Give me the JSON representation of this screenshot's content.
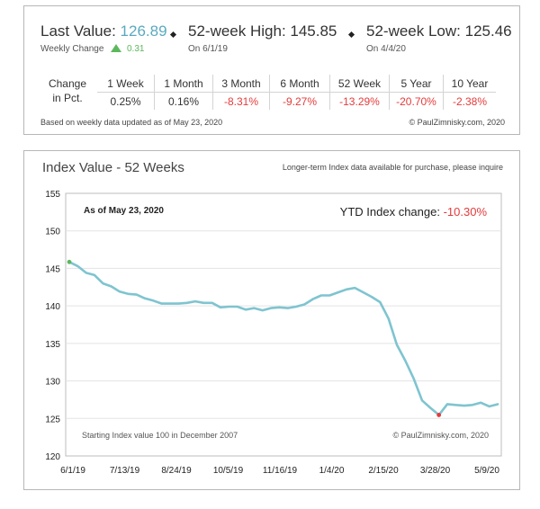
{
  "summary": {
    "last_value_label": "Last Value:",
    "last_value": "126.89",
    "weekly_change_label": "Weekly Change",
    "weekly_change": "0.31",
    "high_label": "52-week High: 145.85",
    "high_date": "On 6/1/19",
    "low_label": "52-week Low: 125.46",
    "low_date": "On 4/4/20"
  },
  "change_table": {
    "row_label_line1": "Change",
    "row_label_line2": "in Pct.",
    "headers": [
      "1 Week",
      "1 Month",
      "3 Month",
      "6 Month",
      "52 Week",
      "5 Year",
      "10 Year"
    ],
    "values": [
      "0.25%",
      "0.16%",
      "-8.31%",
      "-9.27%",
      "-13.29%",
      "-20.70%",
      "-2.38%"
    ]
  },
  "footnote": "Based on weekly data updated as of May 23, 2020",
  "copyright": "© PaulZimnisky.com, 2020",
  "colors": {
    "accent": "#5aa9bf",
    "positive": "#5cb85c",
    "negative": "#e53b3b",
    "line": "#7fc4d0"
  },
  "chart_data": {
    "type": "line",
    "title": "Index Value - 52 Weeks",
    "subtitle": "Longer-term Index data available for purchase, please inquire",
    "as_of": "As of May 23, 2020",
    "ytd_label": "YTD Index change:",
    "ytd_value": "-10.30%",
    "annotation_start": "Starting Index value 100 in December 2007",
    "annotation_copyright": "© PaulZimnisky.com, 2020",
    "xtick_labels": [
      "6/1/19",
      "7/13/19",
      "8/24/19",
      "10/5/19",
      "11/16/19",
      "1/4/20",
      "2/15/20",
      "3/28/20",
      "5/9/20"
    ],
    "ylim": [
      120,
      155
    ],
    "yticks": [
      120,
      125,
      130,
      135,
      140,
      145,
      150,
      155
    ],
    "grid": true,
    "series": [
      {
        "values": [
          145.85,
          145.3,
          144.4,
          144.1,
          143.0,
          142.6,
          141.9,
          141.6,
          141.5,
          141.0,
          140.7,
          140.3,
          140.3,
          140.3,
          140.4,
          140.6,
          140.4,
          140.4,
          139.8,
          139.9,
          139.9,
          139.5,
          139.7,
          139.4,
          139.7,
          139.8,
          139.7,
          139.9,
          140.2,
          140.9,
          141.4,
          141.4,
          141.8,
          142.2,
          142.4,
          141.8,
          141.2,
          140.5,
          138.3,
          134.8,
          132.7,
          130.3,
          127.4,
          126.4,
          125.46,
          126.9,
          126.8,
          126.7,
          126.8,
          127.1,
          126.6,
          126.89
        ]
      }
    ],
    "min_point_index": 44,
    "max_point_index": 0
  }
}
